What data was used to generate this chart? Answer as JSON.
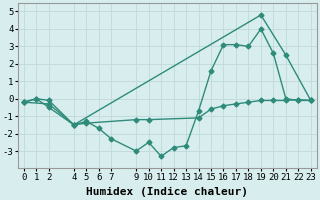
{
  "line1_x": [
    0,
    1,
    2,
    4,
    5,
    6,
    7,
    9,
    10,
    11,
    12,
    13,
    14,
    15,
    16,
    17,
    18,
    19,
    20,
    21,
    22,
    23
  ],
  "line1_y": [
    -0.2,
    0.0,
    -0.1,
    -1.5,
    -1.3,
    -1.7,
    -2.3,
    -3.0,
    -2.5,
    -3.3,
    -2.8,
    -2.7,
    -0.7,
    1.6,
    3.1,
    3.1,
    3.0,
    4.0,
    2.6,
    0.0,
    -0.1,
    -0.1
  ],
  "line2_x": [
    0,
    2,
    4,
    19,
    21,
    23
  ],
  "line2_y": [
    -0.2,
    -0.3,
    -1.5,
    4.8,
    2.5,
    -0.1
  ],
  "line3_x": [
    0,
    1,
    2,
    4,
    5,
    9,
    10,
    14,
    15,
    16,
    17,
    18,
    19,
    20,
    21,
    22,
    23
  ],
  "line3_y": [
    -0.2,
    0.0,
    -0.5,
    -1.5,
    -1.4,
    -1.2,
    -1.2,
    -1.1,
    -0.6,
    -0.4,
    -0.3,
    -0.2,
    -0.1,
    -0.1,
    -0.1,
    -0.05,
    -0.1
  ],
  "line_color": "#2e8b7a",
  "bg_color": "#d8eeee",
  "grid_color": "#c0d8d8",
  "xlabel": "Humidex (Indice chaleur)",
  "ylim": [
    -4,
    5.5
  ],
  "xlim": [
    -0.5,
    23.5
  ],
  "xticks": [
    0,
    1,
    2,
    4,
    5,
    6,
    7,
    9,
    10,
    11,
    12,
    13,
    14,
    15,
    16,
    17,
    18,
    19,
    20,
    21,
    22,
    23
  ],
  "yticks": [
    -3,
    -2,
    -1,
    0,
    1,
    2,
    3,
    4,
    5
  ],
  "marker": "D",
  "marker_size": 2.5,
  "line_width": 1.0,
  "xlabel_fontsize": 8,
  "tick_fontsize": 6.5
}
